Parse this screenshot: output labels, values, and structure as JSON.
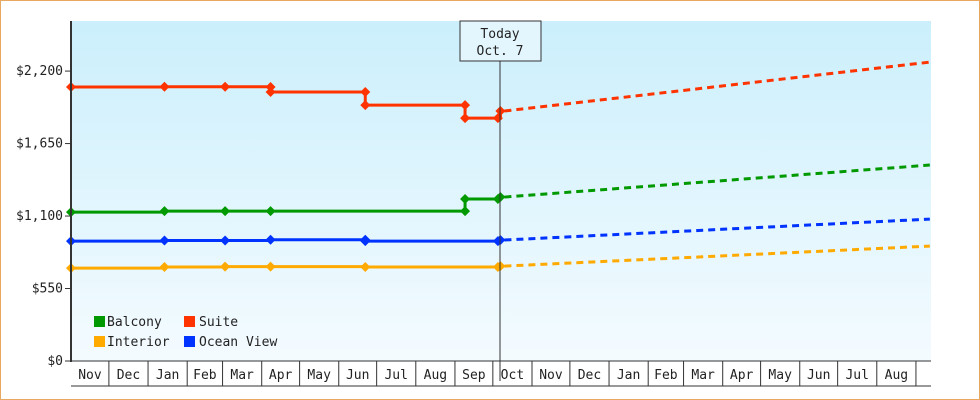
{
  "chart_data": {
    "type": "line",
    "title": "",
    "xlabel": "",
    "ylabel": "",
    "ylim": [
      0,
      2580
    ],
    "y_ticks": [
      {
        "value": 0,
        "label": "$0"
      },
      {
        "value": 550,
        "label": "$550"
      },
      {
        "value": 1100,
        "label": "$1,100"
      },
      {
        "value": 1650,
        "label": "$1,650"
      },
      {
        "value": 2200,
        "label": "$2,200"
      }
    ],
    "x_month_labels": [
      "Nov",
      "Dec",
      "Jan",
      "Feb",
      "Mar",
      "Apr",
      "May",
      "Jun",
      "Jul",
      "Aug",
      "Sep",
      "Oct",
      "Nov",
      "Dec",
      "Jan",
      "Feb",
      "Mar",
      "Apr",
      "May",
      "Jun",
      "Jul",
      "Aug"
    ],
    "grid": false,
    "legend_position": "bottom-left",
    "today": {
      "label": "Today",
      "date_label": "Oct. 7",
      "date": "Oct 7"
    },
    "series": [
      {
        "name": "Balcony",
        "color": "#009900",
        "points": [
          [
            "Nov 1",
            1130
          ],
          [
            "Jan 14",
            1137
          ],
          [
            "Mar 3",
            1137
          ],
          [
            "Apr 8",
            1137
          ],
          [
            "Sep 9",
            1137
          ],
          [
            "Sep 9",
            1229
          ],
          [
            "Oct 5",
            1229
          ],
          [
            "Oct 7",
            1244
          ]
        ],
        "forecast": [
          [
            "Oct 7",
            1244
          ],
          [
            "Sep 12",
            1487
          ]
        ]
      },
      {
        "name": "Suite",
        "color": "#ff3300",
        "points": [
          [
            "Nov 1",
            2079
          ],
          [
            "Jan 14",
            2081
          ],
          [
            "Mar 3",
            2081
          ],
          [
            "Apr 8",
            2079
          ],
          [
            "Apr 8",
            2041
          ],
          [
            "Jun 22",
            2041
          ],
          [
            "Jun 22",
            1942
          ],
          [
            "Sep 9",
            1942
          ],
          [
            "Sep 9",
            1843
          ],
          [
            "Oct 5",
            1843
          ],
          [
            "Oct 7",
            1897
          ]
        ],
        "forecast": [
          [
            "Oct 7",
            1897
          ],
          [
            "Sep 12",
            2268
          ]
        ]
      },
      {
        "name": "Interior",
        "color": "#ffaa00",
        "points": [
          [
            "Nov 1",
            705
          ],
          [
            "Jan 14",
            713
          ],
          [
            "Mar 3",
            716
          ],
          [
            "Apr 8",
            716
          ],
          [
            "Jun 22",
            713
          ],
          [
            "Oct 5",
            713
          ],
          [
            "Oct 7",
            720
          ]
        ],
        "forecast": [
          [
            "Oct 7",
            720
          ],
          [
            "Sep 12",
            872
          ]
        ]
      },
      {
        "name": "Ocean View",
        "color": "#0033ff",
        "points": [
          [
            "Nov 1",
            910
          ],
          [
            "Jan 14",
            914
          ],
          [
            "Mar 3",
            914
          ],
          [
            "Apr 8",
            920
          ],
          [
            "Jun 22",
            920
          ],
          [
            "Jun 22",
            910
          ],
          [
            "Oct 5",
            910
          ],
          [
            "Oct 7",
            918
          ]
        ],
        "forecast": [
          [
            "Oct 7",
            918
          ],
          [
            "Sep 12",
            1077
          ]
        ]
      }
    ]
  }
}
